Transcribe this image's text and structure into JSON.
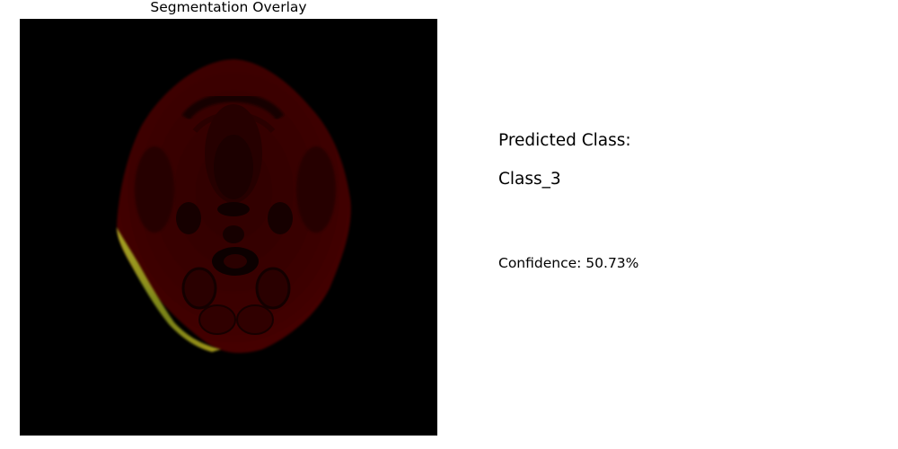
{
  "overlay": {
    "title": "Segmentation Overlay",
    "colors": {
      "background": "#000000",
      "tissue": "#3a0000",
      "tissue_dark": "#220000",
      "structure": "#120000",
      "segmentation": "#9ea81e"
    }
  },
  "prediction": {
    "label": "Predicted Class:",
    "class_name": "Class_3",
    "confidence_text": "Confidence: 50.73%"
  }
}
